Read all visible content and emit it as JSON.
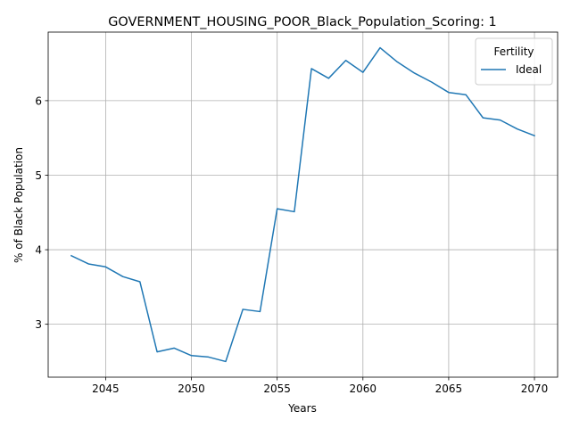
{
  "chart_data": {
    "type": "line",
    "title": "GOVERNMENT_HOUSING_POOR_Black_Population_Scoring: 1",
    "xlabel": "Years",
    "ylabel": "% of Black Population",
    "xlim": [
      2041.65,
      2071.35
    ],
    "ylim": [
      2.29,
      6.92
    ],
    "xticks": [
      2045,
      2050,
      2055,
      2060,
      2065,
      2070
    ],
    "yticks": [
      3,
      4,
      5,
      6
    ],
    "grid": true,
    "legend": {
      "title": "Fertility",
      "position": "top-right"
    },
    "series": [
      {
        "name": "Ideal",
        "color": "#1f77b4",
        "x": [
          2043,
          2044,
          2045,
          2046,
          2047,
          2048,
          2049,
          2050,
          2051,
          2052,
          2053,
          2054,
          2055,
          2056,
          2057,
          2058,
          2059,
          2060,
          2061,
          2062,
          2063,
          2064,
          2065,
          2066,
          2067,
          2068,
          2069,
          2070
        ],
        "y": [
          3.92,
          3.81,
          3.77,
          3.64,
          3.57,
          2.63,
          2.68,
          2.58,
          2.56,
          2.5,
          3.2,
          3.17,
          4.55,
          4.51,
          6.43,
          6.3,
          6.54,
          6.38,
          6.71,
          6.52,
          6.37,
          6.25,
          6.11,
          6.08,
          5.77,
          5.74,
          5.62,
          5.53
        ]
      }
    ]
  }
}
